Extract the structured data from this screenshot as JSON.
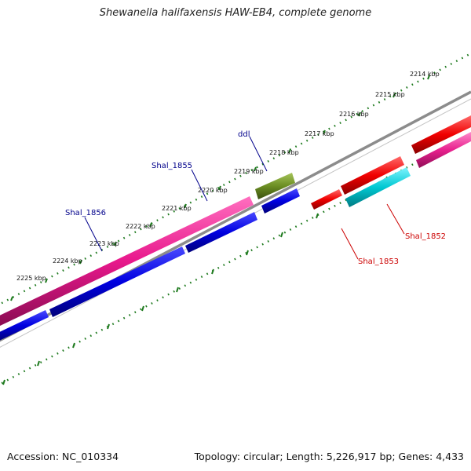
{
  "title": "Shewanella halifaxensis HAW-EB4, complete genome",
  "footer": {
    "accession": "Accession: NC_010334",
    "summary": "Topology: circular; Length: 5,226,917 bp; Genes: 4,433"
  },
  "ruler": {
    "tick_labels": [
      "2214 kbp",
      "2215 kbp",
      "2216 kbp",
      "2217 kbp",
      "2218 kbp",
      "2219 kbp",
      "2220 kbp",
      "2221 kbp",
      "2222 kbp",
      "2223 kbp",
      "2224 kbp",
      "2225 kbp"
    ]
  },
  "genes": [
    {
      "name": "ddl",
      "color": "#00008b"
    },
    {
      "name": "Shal_1855",
      "color": "#00008b"
    },
    {
      "name": "Shal_1856",
      "color": "#00008b"
    },
    {
      "name": "Shal_1852",
      "color": "#cc0000"
    },
    {
      "name": "Shal_1853",
      "color": "#cc0000"
    }
  ],
  "colors": {
    "backbone": "#8c8c8c",
    "tick": "#1e7a1e",
    "pink": "#e8188c",
    "blue": "#0000e0",
    "olive": "#6b8e23",
    "red": "#f00000",
    "cyan": "#00c8d2",
    "magenta": "#e8208e"
  }
}
